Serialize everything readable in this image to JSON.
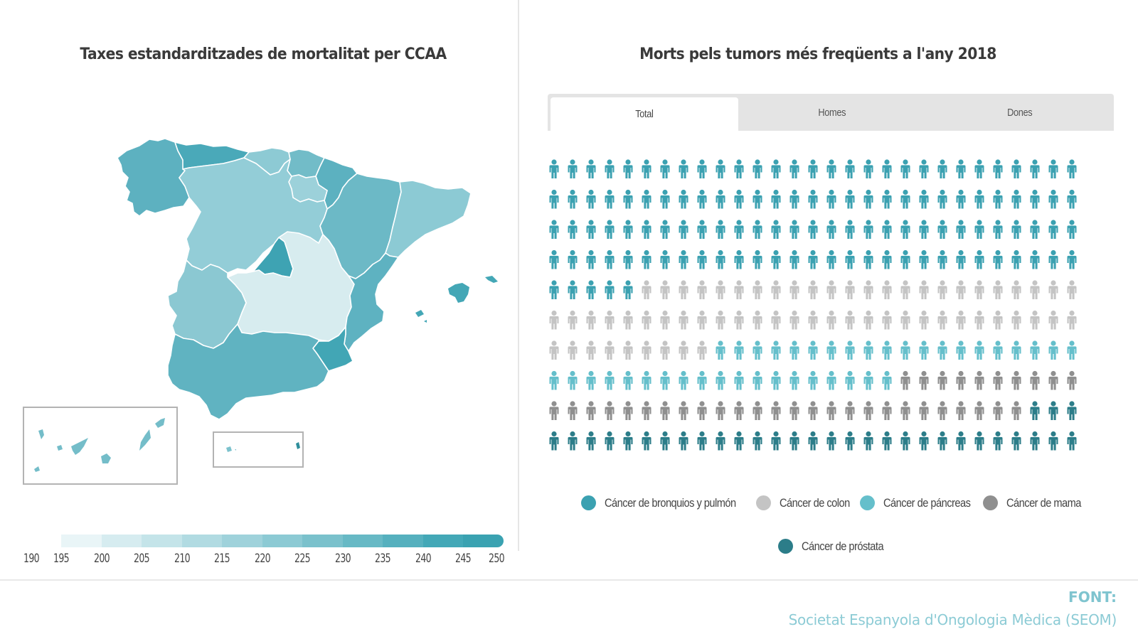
{
  "left_panel": {
    "title": "Taxes estandarditzades de mortalitat per CCAA",
    "scale": {
      "ticks": [
        "190",
        "195",
        "200",
        "205",
        "210",
        "215",
        "220",
        "225",
        "230",
        "235",
        "240",
        "245",
        "250"
      ],
      "colors": [
        "#e9f5f7",
        "#d6ecf0",
        "#c4e4e9",
        "#b1dbe2",
        "#9fd2db",
        "#8ccad4",
        "#7ac1cc",
        "#67b9c5",
        "#55b0be",
        "#43a8b7",
        "#3aa2b1"
      ]
    }
  },
  "right_panel": {
    "title": "Morts pels tumors més freqüents a l'any 2018",
    "tabs": [
      {
        "label": "Total",
        "active": true
      },
      {
        "label": "Homes",
        "active": false
      },
      {
        "label": "Dones",
        "active": false
      }
    ]
  },
  "footer": {
    "source_label": "FONT:",
    "source_text": "Societat Espanyola d'Ongologia Mèdica (SEOM)"
  },
  "chart_data": [
    {
      "type": "heatmap",
      "title": "Taxes estandarditzades de mortalitat per CCAA",
      "subtype": "choropleth",
      "color_scale": {
        "min": 190,
        "max": 250,
        "step": 5
      },
      "regions": [
        {
          "name": "Galicia",
          "approx_value": 236,
          "color": "#5db1c0"
        },
        {
          "name": "Asturias",
          "approx_value": 241,
          "color": "#4aa9b9"
        },
        {
          "name": "Cantabria",
          "approx_value": 221,
          "color": "#8dcad4"
        },
        {
          "name": "País Vasco",
          "approx_value": 229,
          "color": "#72bcc8"
        },
        {
          "name": "Navarra",
          "approx_value": 236,
          "color": "#5cb1c0"
        },
        {
          "name": "La Rioja",
          "approx_value": 217,
          "color": "#9cd1da"
        },
        {
          "name": "Castilla y León",
          "approx_value": 219,
          "color": "#93cdd7"
        },
        {
          "name": "Aragón",
          "approx_value": 230,
          "color": "#6cb9c6"
        },
        {
          "name": "Cataluña",
          "approx_value": 221,
          "color": "#8ccad4"
        },
        {
          "name": "Madrid",
          "approx_value": 246,
          "color": "#3ea3b3"
        },
        {
          "name": "Castilla-La Mancha",
          "approx_value": 200,
          "color": "#d7ecef"
        },
        {
          "name": "Extremadura",
          "approx_value": 222,
          "color": "#8bc8d2"
        },
        {
          "name": "Comunitat Valenciana",
          "approx_value": 236,
          "color": "#5eb2c1"
        },
        {
          "name": "Murcia",
          "approx_value": 245,
          "color": "#42a6b5"
        },
        {
          "name": "Andalucía",
          "approx_value": 235,
          "color": "#60b3c1"
        },
        {
          "name": "Illes Balears",
          "approx_value": 245,
          "color": "#44a7b6"
        },
        {
          "name": "Canarias",
          "approx_value": 229,
          "color": "#74bdc9"
        },
        {
          "name": "Ceuta",
          "approx_value": 226,
          "color": "#7cc2cd"
        },
        {
          "name": "Melilla",
          "approx_value": 250,
          "color": "#2e8e9b"
        }
      ]
    },
    {
      "type": "table",
      "subtype": "pictogram",
      "title": "Morts pels tumors més freqüents a l'any 2018",
      "active_tab": "Total",
      "grid": {
        "rows": 10,
        "columns": 29
      },
      "series": [
        {
          "name": "Cáncer de bronquios y pulmón",
          "icons": 121,
          "color": "#3ba1b1"
        },
        {
          "name": "Cáncer de colon",
          "icons": 62,
          "color": "#c4c4c4"
        },
        {
          "name": "Cáncer de páncreas",
          "icons": 39,
          "color": "#65bfcb"
        },
        {
          "name": "Cáncer de mama",
          "icons": 36,
          "color": "#8f8f8f"
        },
        {
          "name": "Cáncer de próstata",
          "icons": 32,
          "color": "#2c7d89"
        }
      ]
    }
  ]
}
